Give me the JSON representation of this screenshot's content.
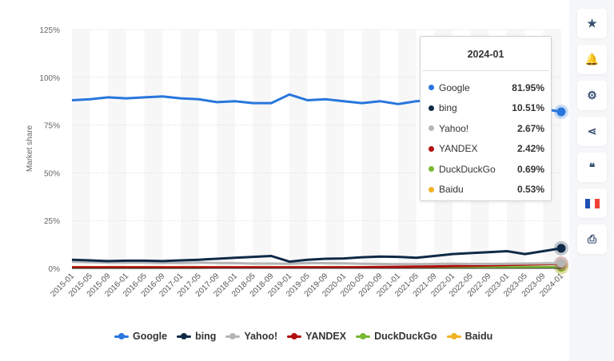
{
  "chart_data": {
    "type": "line",
    "ylabel": "Market share",
    "ylim": [
      0,
      125
    ],
    "yticks": [
      "0%",
      "25%",
      "50%",
      "75%",
      "100%",
      "125%"
    ],
    "ytick_values": [
      0,
      25,
      50,
      75,
      100,
      125
    ],
    "grid": true,
    "legend": "bottom",
    "x": [
      "2015-01",
      "2015-05",
      "2015-09",
      "2016-01",
      "2016-05",
      "2016-09",
      "2017-01",
      "2017-05",
      "2017-09",
      "2018-01",
      "2018-05",
      "2018-09",
      "2019-01",
      "2019-05",
      "2019-09",
      "2020-01",
      "2020-05",
      "2020-09",
      "2021-01",
      "2021-05",
      "2021-09",
      "2022-01",
      "2022-05",
      "2022-09",
      "2023-01",
      "2023-05",
      "2023-09",
      "2024-01"
    ],
    "series": [
      {
        "name": "Google",
        "color": "#2876dd",
        "values": [
          88,
          88.5,
          89.5,
          89,
          89.5,
          90,
          89,
          88.5,
          87,
          87.5,
          86.5,
          86.5,
          91,
          88,
          88.5,
          87.5,
          86.5,
          87.5,
          86,
          87.5,
          88,
          87,
          86,
          85.5,
          85,
          84,
          83.5,
          81.95
        ]
      },
      {
        "name": "bing",
        "color": "#0f2a47",
        "values": [
          4.5,
          4.2,
          3.8,
          4,
          4,
          3.8,
          4.2,
          4.5,
          5,
          5.5,
          6,
          6.5,
          3.5,
          4.5,
          5,
          5.2,
          5.8,
          6.2,
          6,
          5.5,
          6.5,
          7.5,
          8,
          8.5,
          9,
          7.5,
          9,
          10.51
        ]
      },
      {
        "name": "Yahoo!",
        "color": "#b5b5b5",
        "values": [
          3.5,
          3.2,
          3,
          3,
          3,
          2.8,
          2.8,
          3,
          2.8,
          2.7,
          2.5,
          2.5,
          2.4,
          2.8,
          2.7,
          2.6,
          2.4,
          2.3,
          2.2,
          2.2,
          2.3,
          2.4,
          2.3,
          2.3,
          2.4,
          2.5,
          2.6,
          2.67
        ]
      },
      {
        "name": "YANDEX",
        "color": "#b30e0e",
        "values": [
          0.5,
          0.5,
          0.5,
          0.5,
          0.5,
          0.5,
          0.5,
          0.5,
          0.5,
          0.5,
          0.5,
          0.5,
          0.5,
          0.5,
          0.5,
          0.5,
          0.6,
          0.7,
          0.8,
          0.9,
          1.0,
          1.2,
          1.4,
          1.6,
          1.8,
          2.0,
          2.2,
          2.42
        ]
      },
      {
        "name": "DuckDuckGo",
        "color": "#78b833",
        "values": [
          0.3,
          0.3,
          0.3,
          0.3,
          0.3,
          0.3,
          0.3,
          0.35,
          0.4,
          0.4,
          0.4,
          0.4,
          0.45,
          0.5,
          0.5,
          0.55,
          0.6,
          0.6,
          0.65,
          0.65,
          0.65,
          0.65,
          0.65,
          0.65,
          0.65,
          0.65,
          0.7,
          0.69
        ]
      },
      {
        "name": "Baidu",
        "color": "#f0b323",
        "values": [
          0.6,
          0.6,
          0.6,
          0.6,
          0.6,
          0.6,
          0.6,
          0.6,
          0.6,
          0.6,
          0.6,
          0.6,
          0.6,
          0.6,
          0.6,
          0.6,
          0.6,
          0.6,
          0.6,
          0.6,
          0.6,
          0.55,
          0.55,
          0.55,
          0.55,
          0.55,
          0.55,
          0.53
        ]
      }
    ]
  },
  "tooltip": {
    "title": "2024-01",
    "rows": [
      {
        "name": "Google",
        "value": "81.95%",
        "color": "#2876dd"
      },
      {
        "name": "bing",
        "value": "10.51%",
        "color": "#0f2a47"
      },
      {
        "name": "Yahoo!",
        "value": "2.67%",
        "color": "#b5b5b5"
      },
      {
        "name": "YANDEX",
        "value": "2.42%",
        "color": "#b30e0e"
      },
      {
        "name": "DuckDuckGo",
        "value": "0.69%",
        "color": "#78b833"
      },
      {
        "name": "Baidu",
        "value": "0.53%",
        "color": "#f0b323"
      }
    ]
  },
  "sidebar": {
    "buttons": [
      {
        "name": "star-icon",
        "glyph": "★"
      },
      {
        "name": "bell-icon",
        "glyph": "🔔"
      },
      {
        "name": "gear-icon",
        "glyph": "⚙"
      },
      {
        "name": "share-icon",
        "glyph": "⋖"
      },
      {
        "name": "quote-icon",
        "glyph": "❝"
      },
      {
        "name": "french-flag-icon",
        "glyph": ""
      },
      {
        "name": "print-icon",
        "glyph": "⎙"
      }
    ]
  }
}
